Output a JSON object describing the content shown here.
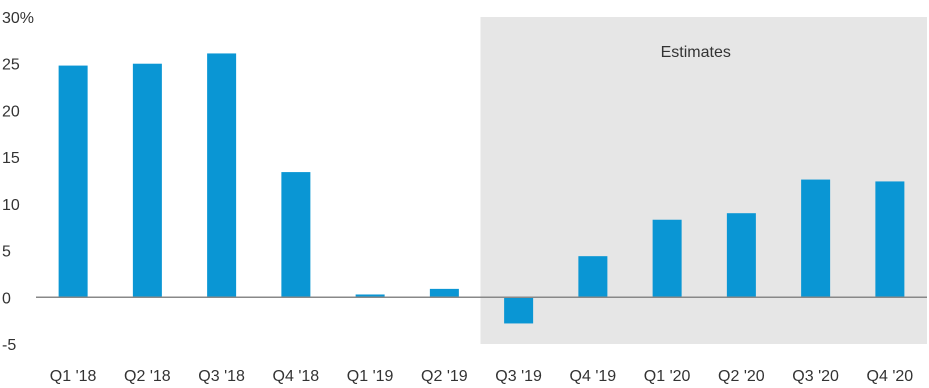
{
  "chart_data": {
    "type": "bar",
    "categories": [
      "Q1 '18",
      "Q2 '18",
      "Q3 '18",
      "Q4 '18",
      "Q1 '19",
      "Q2 '19",
      "Q3 '19",
      "Q4 '19",
      "Q1 '20",
      "Q2 '20",
      "Q3 '20",
      "Q4 '20"
    ],
    "values": [
      24.8,
      25.0,
      26.1,
      13.4,
      0.3,
      0.9,
      -2.8,
      4.4,
      8.3,
      9.0,
      12.6,
      12.4
    ],
    "ylim": [
      -5,
      30
    ],
    "yticks": [
      -5,
      0,
      5,
      10,
      15,
      20,
      25,
      30
    ],
    "ytick_labels": [
      "-5",
      "0",
      "5",
      "10",
      "15",
      "20",
      "25",
      "30%"
    ],
    "grid": false,
    "bar_color": "#0a96d4",
    "shaded_region": {
      "label": "Estimates",
      "start_category": "Q3 '19",
      "end_category": "Q4 '20",
      "color": "#e6e6e6"
    },
    "zero_line_color": "#888888"
  }
}
